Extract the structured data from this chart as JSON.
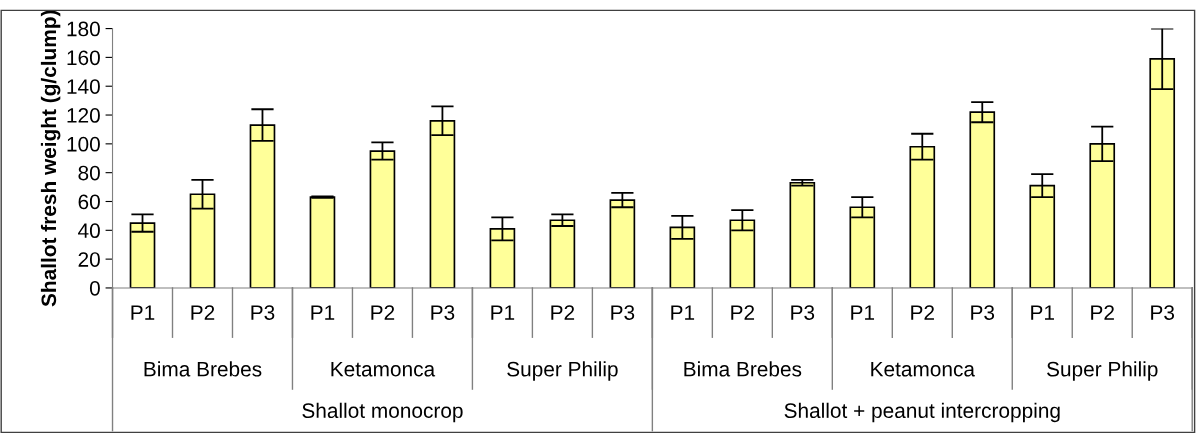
{
  "chart_data": {
    "type": "bar",
    "ylabel": "Shallot fresh weight (g/clump)",
    "categories": [
      "P1",
      "P2",
      "P3",
      "P1",
      "P2",
      "P3",
      "P1",
      "P2",
      "P3",
      "P1",
      "P2",
      "P3",
      "P1",
      "P2",
      "P3",
      "P1",
      "P2",
      "P3"
    ],
    "values": [
      45,
      65,
      113,
      63,
      95,
      116,
      41,
      47,
      61,
      42,
      47,
      73,
      56,
      98,
      122,
      71,
      100,
      159
    ],
    "errors": [
      6,
      10,
      11,
      0.5,
      6,
      10,
      8,
      4,
      5,
      8,
      7,
      2,
      7,
      9,
      7,
      8,
      12,
      21
    ],
    "color": "#ffff99",
    "annotations": [
      "Bima Brebes",
      "Ketamonca",
      "Super Philip",
      "Bima Brebes",
      "Ketamonca",
      "Super Philip",
      "Shallot monocrop",
      "Shallot + peanut intercropping"
    ],
    "ylim": [
      0,
      180
    ],
    "yticks": [
      0,
      20,
      40,
      60,
      80,
      100,
      120,
      140,
      160,
      180
    ],
    "grid": false
  }
}
